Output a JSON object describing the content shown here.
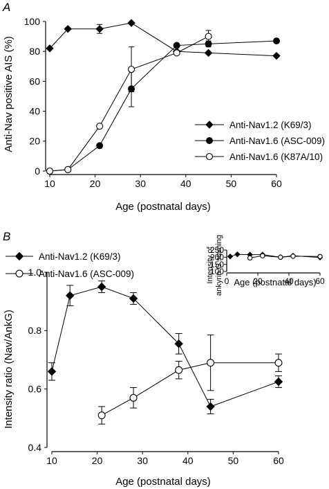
{
  "chart_data": [
    {
      "panel_label": "A",
      "type": "line",
      "xlabel": "Age (postnatal days)",
      "ylabel": "Anti-Nav positive AIS (%)",
      "xlim": [
        10,
        60
      ],
      "ylim": [
        0,
        100
      ],
      "xticks": [
        "10",
        "20",
        "30",
        "40",
        "50",
        "60"
      ],
      "yticks": [
        "0",
        "20",
        "40",
        "60",
        "80",
        "100"
      ],
      "legend_position": "lower-right",
      "series": [
        {
          "name": "Anti-Nav1.2 (K69/3)",
          "marker": "diamond-filled",
          "x": [
            10,
            14,
            21,
            28,
            38,
            45,
            60
          ],
          "y": [
            82,
            95,
            95,
            99,
            80,
            79,
            77
          ],
          "err": [
            0,
            0,
            3,
            0,
            0,
            0,
            0
          ]
        },
        {
          "name": "Anti-Nav1.6 (ASC-009)",
          "marker": "circle-filled",
          "x": [
            10,
            14,
            21,
            28,
            38,
            45,
            60
          ],
          "y": [
            0,
            1,
            17,
            55,
            84,
            85,
            87
          ],
          "err": [
            0,
            0,
            0,
            12,
            0,
            2,
            0
          ]
        },
        {
          "name": "Anti-Nav1.6 (K87A/10)",
          "marker": "circle-open",
          "x": [
            10,
            14,
            21,
            28,
            38,
            45
          ],
          "y": [
            0,
            1,
            30,
            68,
            79,
            90
          ],
          "err": [
            0,
            0,
            0,
            15,
            0,
            4
          ]
        }
      ]
    },
    {
      "panel_label": "B",
      "type": "line",
      "xlabel": "Age (postnatal days)",
      "ylabel": "Intensity ratio (Nav/AnkG)",
      "xlim": [
        10,
        60
      ],
      "ylim": [
        0.4,
        1.0
      ],
      "xticks": [
        "10",
        "20",
        "30",
        "40",
        "50",
        "60"
      ],
      "yticks": [
        "0.4",
        "0.6",
        "0.8",
        "1.0"
      ],
      "legend_position": "top-left",
      "series": [
        {
          "name": "Anti-Nav1.2 (K69/3)",
          "marker": "diamond-filled",
          "x": [
            10,
            14,
            21,
            28,
            38,
            45,
            60
          ],
          "y": [
            0.66,
            0.92,
            0.95,
            0.91,
            0.755,
            0.54,
            0.625
          ],
          "err": [
            0.03,
            0.035,
            0.02,
            0.02,
            0.035,
            0.025,
            0.02
          ]
        },
        {
          "name": "Anti-Nav1.6 (ASC-009)",
          "marker": "circle-open",
          "x": [
            21,
            28,
            38,
            45,
            60
          ],
          "y": [
            0.51,
            0.57,
            0.665,
            0.69,
            0.69
          ],
          "err": [
            0.03,
            0.035,
            0.03,
            0.095,
            0.03
          ]
        }
      ]
    },
    {
      "panel_label": "",
      "type": "line",
      "inset": true,
      "xlabel": "Age (postnatal days)",
      "ylabel_lines": [
        "Intensity of",
        "ankyrin G staining"
      ],
      "xlim": [
        10,
        60
      ],
      "ylim": [
        100,
        250
      ],
      "xticks": [
        "0",
        "20",
        "40",
        "60"
      ],
      "yticks": [
        "100",
        "150",
        "200",
        "250"
      ],
      "series": [
        {
          "marker": "diamond-filled",
          "x": [
            10,
            14,
            21,
            28,
            38,
            45,
            60
          ],
          "y": [
            205,
            220,
            218,
            218,
            200,
            210,
            198
          ]
        },
        {
          "marker": "circle-open",
          "x": [
            21,
            28,
            38,
            45,
            60
          ],
          "y": [
            195,
            210,
            200,
            207,
            205
          ]
        }
      ]
    }
  ]
}
